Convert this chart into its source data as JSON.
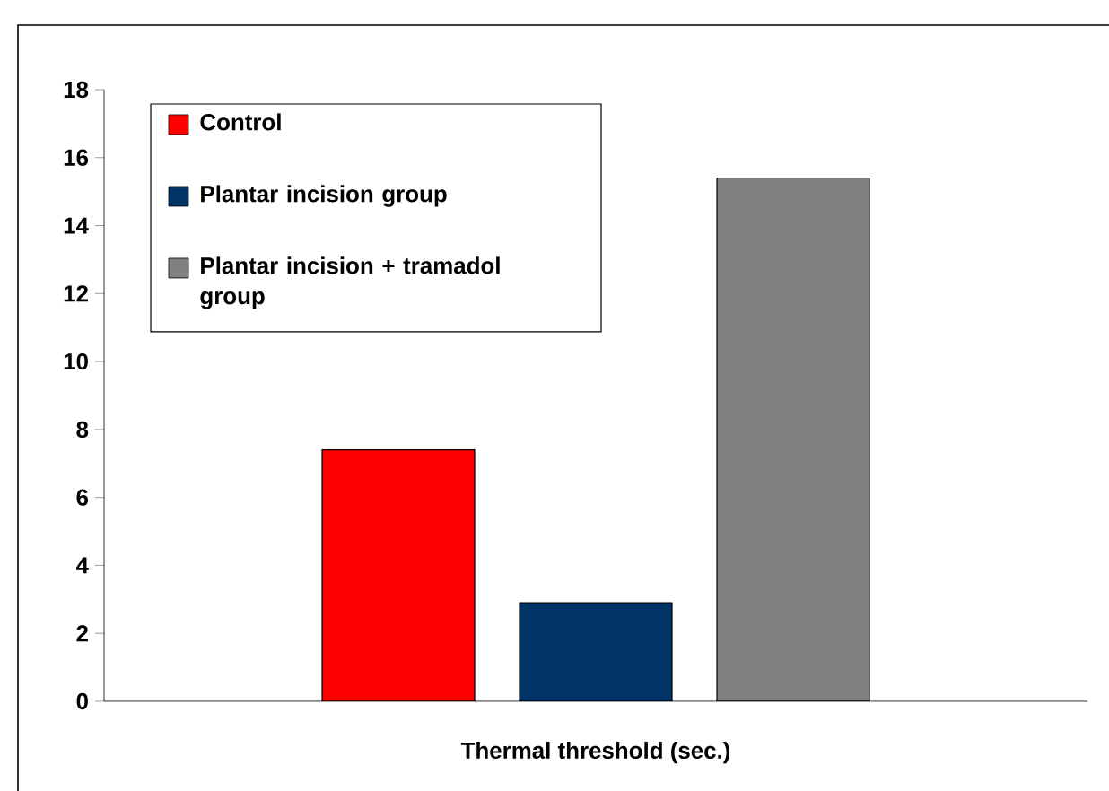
{
  "chart_data": {
    "type": "bar",
    "categories": [
      "Thermal threshold (sec.)"
    ],
    "series": [
      {
        "name": "Control",
        "color": "#ff0000",
        "values": [
          7.4
        ]
      },
      {
        "name": "Plantar incision group",
        "color": "#003366",
        "values": [
          2.9
        ]
      },
      {
        "name": "Plantar incision + tramadol group",
        "color": "#808080",
        "values": [
          15.4
        ]
      }
    ],
    "ylim": [
      0,
      18
    ],
    "yticks": [
      0,
      2,
      4,
      6,
      8,
      10,
      12,
      14,
      16,
      18
    ],
    "grid": false,
    "legend": "top left"
  }
}
